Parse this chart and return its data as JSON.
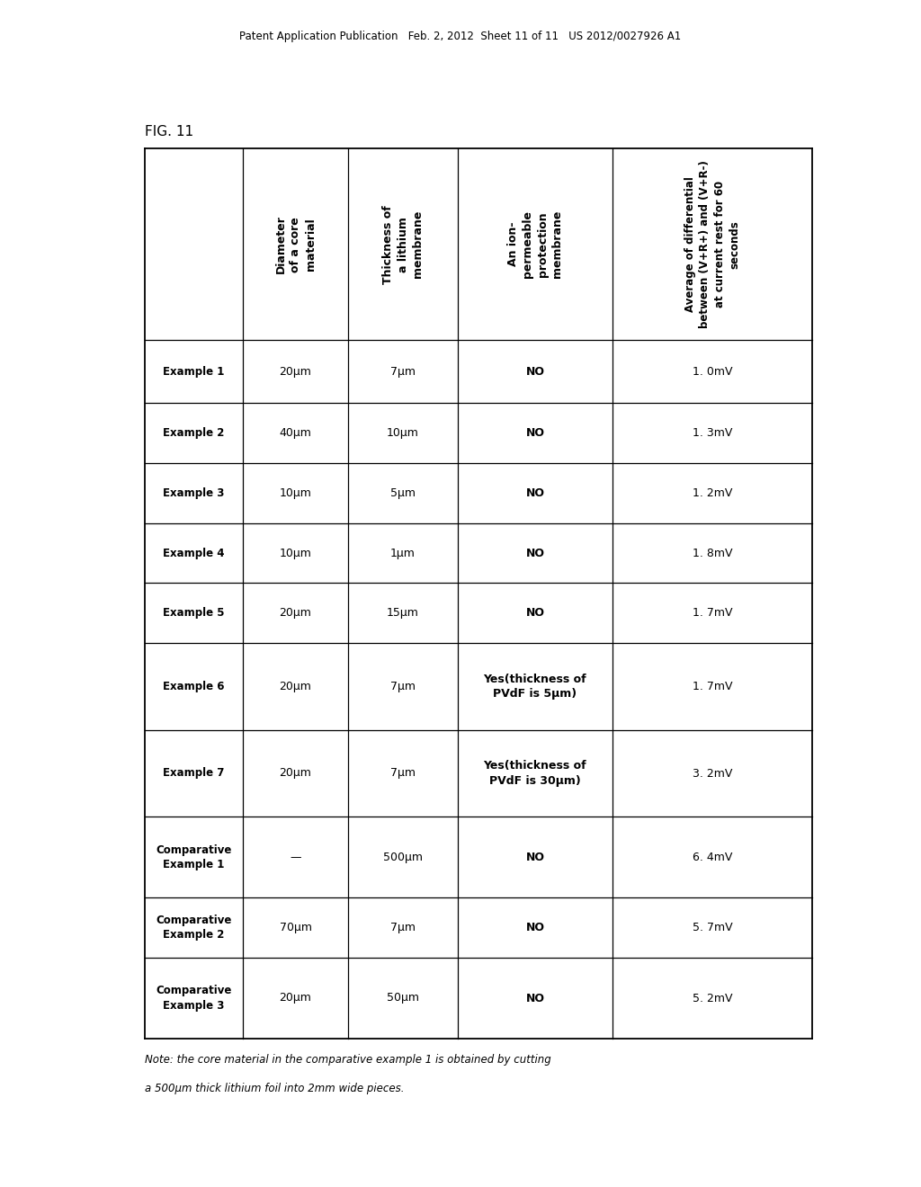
{
  "header_text": "Patent Application Publication   Feb. 2, 2012  Sheet 11 of 11   US 2012/0027926 A1",
  "fig_label": "FIG. 11",
  "col_headers": [
    "Diameter\nof a core\nmaterial",
    "Thickness of\na lithium\nmembrane",
    "An ion-\npermeable\nprotection\nmembrane",
    "Average of differential\nbetween (V+R+) and (V+R-)\nat current rest for 60\nseconds"
  ],
  "row_labels": [
    "Example 1",
    "Example 2",
    "Example 3",
    "Example 4",
    "Example 5",
    "Example 6",
    "Example 7",
    "Comparative\nExample 1",
    "Comparative\nExample 2",
    "Comparative\nExample 3"
  ],
  "col1_data": [
    "20μm",
    "40μm",
    "10μm",
    "10μm",
    "20μm",
    "20μm",
    "20μm",
    "—",
    "70μm",
    "20μm"
  ],
  "col2_data": [
    "7μm",
    "10μm",
    "5μm",
    "1μm",
    "15μm",
    "7μm",
    "7μm",
    "500μm",
    "7μm",
    "50μm"
  ],
  "col3_data": [
    "NO",
    "NO",
    "NO",
    "NO",
    "NO",
    "Yes(thickness of\nPVdF is 5μm)",
    "Yes(thickness of\nPVdF is 30μm)",
    "NO",
    "NO",
    "NO"
  ],
  "col4_data": [
    "1. 0mV",
    "1. 3mV",
    "1. 2mV",
    "1. 8mV",
    "1. 7mV",
    "1. 7mV",
    "3. 2mV",
    "6. 4mV",
    "5. 7mV",
    "5. 2mV"
  ],
  "note_line1": "Note: the core material in the comparative example 1 is obtained by cutting",
  "note_line2": "a 500μm thick lithium foil into 2mm wide pieces.",
  "background_color": "#ffffff",
  "text_color": "#000000"
}
